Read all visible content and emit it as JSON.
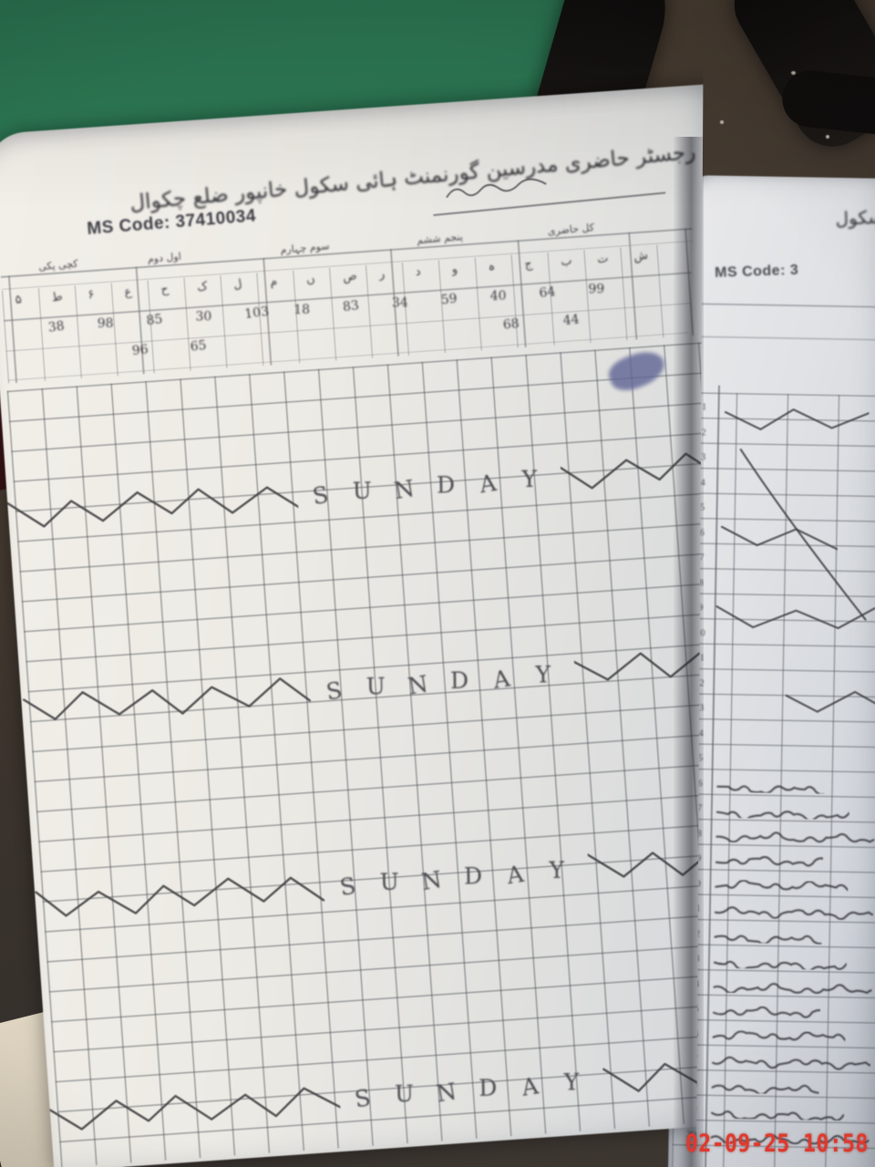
{
  "camera": {
    "timestamp": "02-09-25 10:58"
  },
  "left_page": {
    "title": "رجسٹر حاضری مدرسین گورنمنٹ ہائی سکول خانپور ضلع چکوال",
    "ms_code": "MS Code: 37410034",
    "header": {
      "group_labels": [
        "کچی پکی",
        "اول دوم",
        "سوم چہارم",
        "پنجم ششم",
        "کل حاضری"
      ],
      "cell_marks": [
        "۵",
        "ط",
        "۶",
        "ع",
        "ح",
        "ک",
        "ل",
        "م",
        "ں",
        "ص",
        "ر",
        "د",
        "و",
        "ہ",
        "ج",
        "ب",
        "ت",
        "ش"
      ],
      "figures_row1": [
        "38",
        "98",
        "85",
        "30",
        "103",
        "18",
        "83",
        "34",
        "59",
        "40",
        "64",
        "99"
      ],
      "figures_row2": [
        "96",
        "65",
        "68",
        "44"
      ]
    },
    "sunday_rows": [
      "SUNDAY",
      "SUNDAY",
      "SUNDAY",
      "SUNDAY"
    ]
  },
  "right_page": {
    "title_partial": "سکول",
    "ms_code_partial": "MS Code: 3",
    "row_numbers": [
      "1",
      "2",
      "3",
      "4",
      "5",
      "6",
      "7",
      "8",
      "9",
      "10",
      "11",
      "12",
      "13",
      "14",
      "15",
      "16",
      "17",
      "18",
      "19",
      "20",
      "21",
      "22",
      "23",
      "24",
      "25",
      "26",
      "27",
      "28",
      "29",
      "30"
    ]
  },
  "colors": {
    "cloth_green": "#2d7a55",
    "cloth_maroon": "#3f1518",
    "floor_brown": "#41362c",
    "chair_black": "#141210",
    "timestamp_red": "#e0392e",
    "grid_line": "#6f7276",
    "page_white": "#eeece7",
    "ink_blot": "#5f6494"
  }
}
